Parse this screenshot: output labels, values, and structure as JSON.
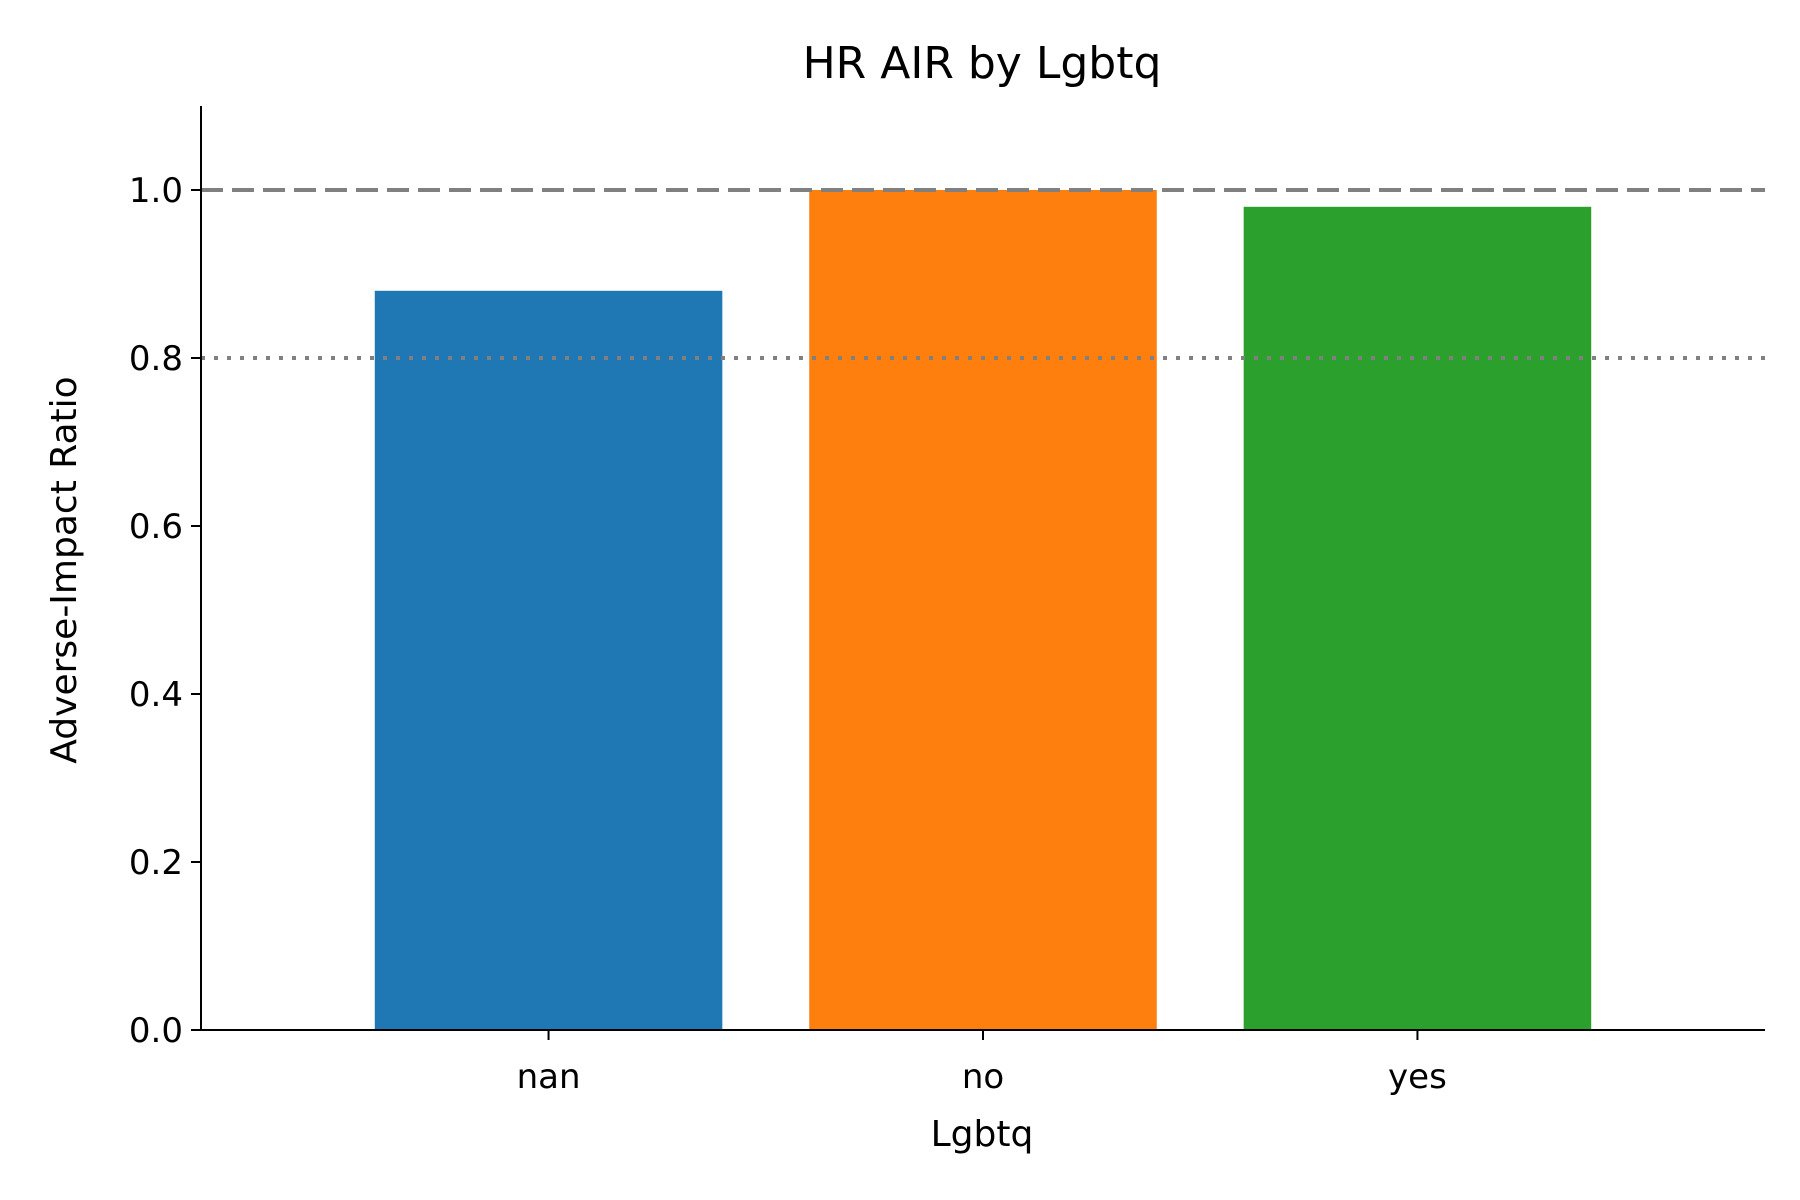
{
  "chart_data": {
    "type": "bar",
    "title": "HR AIR by Lgbtq",
    "xlabel": "Lgbtq",
    "ylabel": "Adverse-Impact Ratio",
    "categories": [
      "nan",
      "no",
      "yes"
    ],
    "values": [
      0.88,
      1.0,
      0.98
    ],
    "bar_colors": [
      "#1f77b4",
      "#ff7f0e",
      "#2ca02c"
    ],
    "ylim": [
      0,
      1.1
    ],
    "yticks": [
      0.0,
      0.2,
      0.4,
      0.6,
      0.8,
      1.0
    ],
    "ytick_labels": [
      "0.0",
      "0.2",
      "0.4",
      "0.6",
      "0.8",
      "1.0"
    ],
    "reference_lines": [
      {
        "value": 1.0,
        "style": "dashed",
        "color": "#808080"
      },
      {
        "value": 0.8,
        "style": "dotted",
        "color": "#808080"
      }
    ],
    "grid": false,
    "legend": "none"
  }
}
